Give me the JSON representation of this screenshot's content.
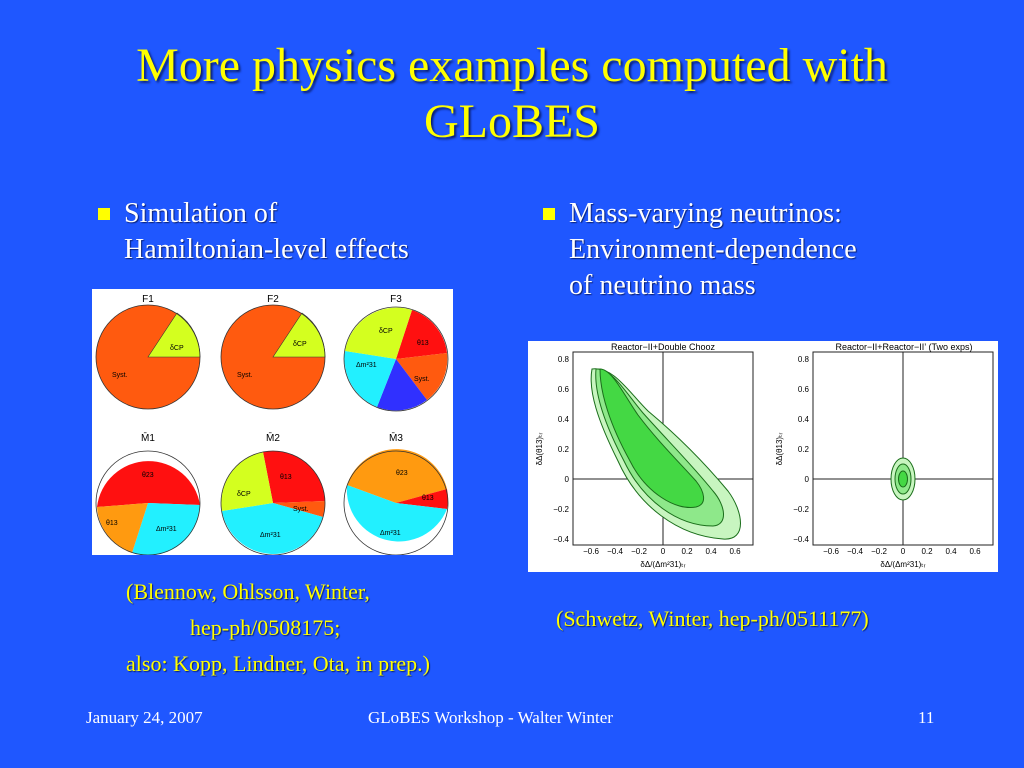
{
  "slide": {
    "title_line1": "More physics examples computed with",
    "title_line2": "GLoBES"
  },
  "left": {
    "bullet_line1": "Simulation of",
    "bullet_line2": "Hamiltonian-level effects",
    "pie_titles": [
      "F1",
      "F2",
      "F3",
      "M̄1",
      "M̄2",
      "M̄3"
    ],
    "pie_labels": {
      "syst": "Syst.",
      "dcp": "δCP",
      "t23": "θ23",
      "t13": "θ13",
      "dm31": "Δm²31"
    },
    "cite_line1": "(Blennow, Ohlsson, Winter,",
    "cite_line2": "hep-ph/0508175;",
    "cite_line3": "also: Kopp, Lindner, Ota, in prep.)"
  },
  "right": {
    "bullet_line1": "Mass-varying neutrinos:",
    "bullet_line2": "Environment-dependence",
    "bullet_line3": "of neutrino mass",
    "plot1_title": "Reactor−II+Double Chooz",
    "plot2_title": "Reactor−II+Reactor−II’ (Two exps)",
    "xlabel": "δΔ/(Δm²31)ₜᵣ",
    "ylabel": "δΔ(θ13)ₜᵣ",
    "x_ticks": [
      "−0.6",
      "−0.4",
      "−0.2",
      "0",
      "0.2",
      "0.4",
      "0.6"
    ],
    "y_ticks": [
      "0.8",
      "0.6",
      "0.4",
      "0.2",
      "0",
      "−0.2",
      "−0.4"
    ],
    "cite": "(Schwetz, Winter, hep-ph/0511177)"
  },
  "footer": {
    "date": "January 24, 2007",
    "center": "GLoBES Workshop - Walter Winter",
    "page": "11"
  },
  "colors": {
    "background": "#1f57ff",
    "title": "#ffff00",
    "pie_orange": "#ff5a0f",
    "pie_yellowgreen": "#d4ff1f",
    "pie_red": "#ff1010",
    "pie_blue": "#3030ff",
    "pie_cyan": "#22f0ff",
    "pie_amber": "#ff9a10"
  }
}
